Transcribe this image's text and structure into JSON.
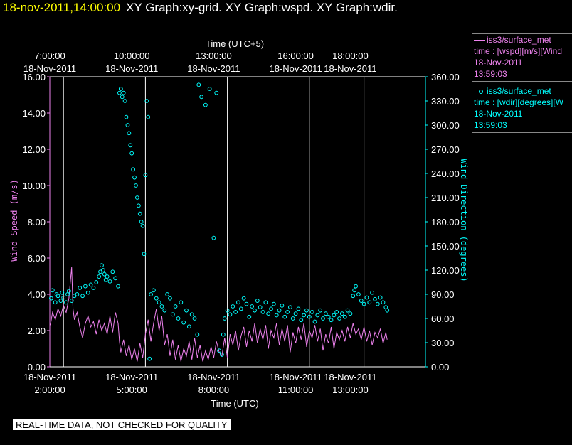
{
  "header": {
    "time": "18-nov-2011,14:00:00",
    "graphs": "XY Graph:xy-grid.  XY Graph:wspd.  XY Graph:wdir."
  },
  "footer": {
    "note": "REAL-TIME DATA, NOT CHECKED FOR QUALITY"
  },
  "legend": {
    "wspd": {
      "name": "iss3/surface_met",
      "desc": "time : [wspd][m/s][Wind",
      "date": "18-Nov-2011",
      "time": "13:59:03"
    },
    "wdir": {
      "name": "iss3/surface_met",
      "desc": "time : [wdir][degrees][W",
      "date": "18-Nov-2011",
      "time": "13:59:03"
    }
  },
  "colors": {
    "wspd": "#ee82ee",
    "wdir": "#00ffff",
    "grid": "#ffffff",
    "background": "#000000"
  },
  "chart_data": {
    "type": "scatter",
    "xlabel_bottom": "Time (UTC)",
    "xlabel_top": "Time (UTC+5)",
    "ylabel_left": "Wind Speed (m/s)",
    "ylabel_right": "Wind Direction (degrees)",
    "xlim": [
      1.5,
      15.25
    ],
    "ylim_left": [
      0,
      16
    ],
    "ylim_right": [
      0,
      360
    ],
    "grid_x": [
      2,
      5,
      8,
      11,
      13
    ],
    "bottom_ticks": [
      {
        "x": 1.5,
        "date": "18-Nov-2011",
        "time": "2:00:00"
      },
      {
        "x": 4.5,
        "date": "18-Nov-2011",
        "time": "5:00:00"
      },
      {
        "x": 7.5,
        "date": "18-Nov-2011",
        "time": "8:00:00"
      },
      {
        "x": 10.5,
        "date": "18-Nov-2011",
        "time": "11:00:00"
      },
      {
        "x": 12.5,
        "date": "18-Nov-2011",
        "time": "13:00:00"
      }
    ],
    "top_ticks": [
      {
        "x": 1.5,
        "date": "18-Nov-2011",
        "time": "7:00:00"
      },
      {
        "x": 4.5,
        "date": "18-Nov-2011",
        "time": "10:00:00"
      },
      {
        "x": 7.5,
        "date": "18-Nov-2011",
        "time": "13:00:00"
      },
      {
        "x": 10.5,
        "date": "18-Nov-2011",
        "time": "16:00:00"
      },
      {
        "x": 12.5,
        "date": "18-Nov-2011",
        "time": "18:00:00"
      }
    ],
    "left_ticks": [
      "0.00",
      "2.00",
      "4.00",
      "6.00",
      "8.00",
      "10.00",
      "12.00",
      "14.00",
      "16.00"
    ],
    "right_ticks": [
      "0.00",
      "30.00",
      "60.00",
      "90.00",
      "120.00",
      "150.00",
      "180.00",
      "210.00",
      "240.00",
      "270.00",
      "300.00",
      "330.00",
      "360.00"
    ],
    "series": [
      {
        "name": "wspd",
        "style": "line",
        "points": [
          [
            1.52,
            2.3
          ],
          [
            1.6,
            3.0
          ],
          [
            1.7,
            2.6
          ],
          [
            1.8,
            3.2
          ],
          [
            1.9,
            2.8
          ],
          [
            2.0,
            3.4
          ],
          [
            2.1,
            3.0
          ],
          [
            2.2,
            3.8
          ],
          [
            2.3,
            5.5
          ],
          [
            2.35,
            3.2
          ],
          [
            2.4,
            2.6
          ],
          [
            2.5,
            3.0
          ],
          [
            2.6,
            2.2
          ],
          [
            2.7,
            1.6
          ],
          [
            2.8,
            2.4
          ],
          [
            2.9,
            2.8
          ],
          [
            3.0,
            2.2
          ],
          [
            3.1,
            2.5
          ],
          [
            3.2,
            1.8
          ],
          [
            3.3,
            2.6
          ],
          [
            3.4,
            2.0
          ],
          [
            3.5,
            2.4
          ],
          [
            3.6,
            1.8
          ],
          [
            3.7,
            2.8
          ],
          [
            3.8,
            1.9
          ],
          [
            3.9,
            3.0
          ],
          [
            4.0,
            2.4
          ],
          [
            4.05,
            1.4
          ],
          [
            4.1,
            0.8
          ],
          [
            4.2,
            1.5
          ],
          [
            4.3,
            0.6
          ],
          [
            4.4,
            1.2
          ],
          [
            4.5,
            0.4
          ],
          [
            4.6,
            1.0
          ],
          [
            4.7,
            0.3
          ],
          [
            4.8,
            1.3
          ],
          [
            4.9,
            0.5
          ],
          [
            5.0,
            1.8
          ],
          [
            5.1,
            2.6
          ],
          [
            5.2,
            1.4
          ],
          [
            5.3,
            2.4
          ],
          [
            5.4,
            3.2
          ],
          [
            5.5,
            2.0
          ],
          [
            5.6,
            2.8
          ],
          [
            5.7,
            1.2
          ],
          [
            5.8,
            1.8
          ],
          [
            5.9,
            0.6
          ],
          [
            6.0,
            1.5
          ],
          [
            6.1,
            0.4
          ],
          [
            6.2,
            1.2
          ],
          [
            6.3,
            0.3
          ],
          [
            6.4,
            1.0
          ],
          [
            6.5,
            0.6
          ],
          [
            6.6,
            1.4
          ],
          [
            6.7,
            0.4
          ],
          [
            6.8,
            1.6
          ],
          [
            6.9,
            0.5
          ],
          [
            7.0,
            1.2
          ],
          [
            7.1,
            0.3
          ],
          [
            7.2,
            0.9
          ],
          [
            7.3,
            0.4
          ],
          [
            7.4,
            1.1
          ],
          [
            7.5,
            0.5
          ],
          [
            7.6,
            1.4
          ],
          [
            7.7,
            0.8
          ],
          [
            7.8,
            0.6
          ],
          [
            7.9,
            1.6
          ],
          [
            8.0,
            0.5
          ],
          [
            8.1,
            1.8
          ],
          [
            8.2,
            1.2
          ],
          [
            8.3,
            2.0
          ],
          [
            8.4,
            0.9
          ],
          [
            8.5,
            1.7
          ],
          [
            8.6,
            2.2
          ],
          [
            8.7,
            1.1
          ],
          [
            8.8,
            2.0
          ],
          [
            8.9,
            1.4
          ],
          [
            9.0,
            2.4
          ],
          [
            9.1,
            1.3
          ],
          [
            9.2,
            2.1
          ],
          [
            9.3,
            1.5
          ],
          [
            9.4,
            2.3
          ],
          [
            9.5,
            1.0
          ],
          [
            9.6,
            2.0
          ],
          [
            9.7,
            1.6
          ],
          [
            9.8,
            2.4
          ],
          [
            9.9,
            1.2
          ],
          [
            10.0,
            2.1
          ],
          [
            10.1,
            1.4
          ],
          [
            10.2,
            2.3
          ],
          [
            10.3,
            0.8
          ],
          [
            10.4,
            1.9
          ],
          [
            10.5,
            1.3
          ],
          [
            10.6,
            2.2
          ],
          [
            10.7,
            1.5
          ],
          [
            10.8,
            2.4
          ],
          [
            10.9,
            1.1
          ],
          [
            11.0,
            2.0
          ],
          [
            11.1,
            1.6
          ],
          [
            11.2,
            2.3
          ],
          [
            11.3,
            1.4
          ],
          [
            11.4,
            2.1
          ],
          [
            11.5,
            0.9
          ],
          [
            11.6,
            1.8
          ],
          [
            11.7,
            1.3
          ],
          [
            11.8,
            2.2
          ],
          [
            11.9,
            1.0
          ],
          [
            12.0,
            1.9
          ],
          [
            12.1,
            1.5
          ],
          [
            12.2,
            2.0
          ],
          [
            12.3,
            1.4
          ],
          [
            12.4,
            2.2
          ],
          [
            12.5,
            1.6
          ],
          [
            12.6,
            2.4
          ],
          [
            12.7,
            1.8
          ],
          [
            12.8,
            2.1
          ],
          [
            12.9,
            1.5
          ],
          [
            13.0,
            2.2
          ],
          [
            13.1,
            1.4
          ],
          [
            13.2,
            2.0
          ],
          [
            13.3,
            1.2
          ],
          [
            13.4,
            1.9
          ],
          [
            13.5,
            1.6
          ],
          [
            13.6,
            2.1
          ],
          [
            13.7,
            1.3
          ],
          [
            13.8,
            1.9
          ],
          [
            13.85,
            1.5
          ]
        ]
      },
      {
        "name": "wdir",
        "style": "circles",
        "points": [
          [
            1.55,
            85
          ],
          [
            1.6,
            95
          ],
          [
            1.7,
            80
          ],
          [
            1.75,
            90
          ],
          [
            1.8,
            88
          ],
          [
            1.9,
            82
          ],
          [
            1.95,
            92
          ],
          [
            2.0,
            86
          ],
          [
            2.1,
            80
          ],
          [
            2.15,
            90
          ],
          [
            2.2,
            94
          ],
          [
            2.3,
            82
          ],
          [
            2.4,
            88
          ],
          [
            2.5,
            90
          ],
          [
            2.6,
            98
          ],
          [
            2.7,
            88
          ],
          [
            2.8,
            100
          ],
          [
            2.9,
            92
          ],
          [
            3.0,
            102
          ],
          [
            3.1,
            98
          ],
          [
            3.2,
            105
          ],
          [
            3.3,
            112
          ],
          [
            3.35,
            118
          ],
          [
            3.4,
            126
          ],
          [
            3.45,
            120
          ],
          [
            3.5,
            115
          ],
          [
            3.55,
            108
          ],
          [
            3.6,
            112
          ],
          [
            3.7,
            106
          ],
          [
            3.8,
            118
          ],
          [
            3.9,
            110
          ],
          [
            4.0,
            100
          ],
          [
            4.05,
            340
          ],
          [
            4.1,
            345
          ],
          [
            4.15,
            335
          ],
          [
            4.2,
            340
          ],
          [
            4.25,
            330
          ],
          [
            4.3,
            310
          ],
          [
            4.35,
            300
          ],
          [
            4.4,
            290
          ],
          [
            4.45,
            275
          ],
          [
            4.5,
            265
          ],
          [
            4.55,
            245
          ],
          [
            4.6,
            235
          ],
          [
            4.65,
            225
          ],
          [
            4.7,
            210
          ],
          [
            4.75,
            200
          ],
          [
            4.8,
            190
          ],
          [
            4.85,
            180
          ],
          [
            4.9,
            175
          ],
          [
            4.95,
            140
          ],
          [
            5.0,
            238
          ],
          [
            5.05,
            330
          ],
          [
            5.1,
            310
          ],
          [
            5.15,
            10
          ],
          [
            5.2,
            90
          ],
          [
            5.3,
            95
          ],
          [
            5.4,
            85
          ],
          [
            5.5,
            80
          ],
          [
            5.6,
            75
          ],
          [
            5.7,
            70
          ],
          [
            5.8,
            90
          ],
          [
            5.9,
            85
          ],
          [
            6.0,
            65
          ],
          [
            6.1,
            75
          ],
          [
            6.2,
            60
          ],
          [
            6.3,
            80
          ],
          [
            6.4,
            55
          ],
          [
            6.5,
            70
          ],
          [
            6.6,
            50
          ],
          [
            6.7,
            65
          ],
          [
            6.8,
            60
          ],
          [
            6.9,
            40
          ],
          [
            6.95,
            350
          ],
          [
            7.05,
            335
          ],
          [
            7.2,
            325
          ],
          [
            7.35,
            345
          ],
          [
            7.5,
            160
          ],
          [
            7.6,
            340
          ],
          [
            7.7,
            20
          ],
          [
            7.8,
            15
          ],
          [
            7.85,
            40
          ],
          [
            7.9,
            60
          ],
          [
            8.0,
            70
          ],
          [
            8.1,
            65
          ],
          [
            8.2,
            75
          ],
          [
            8.3,
            68
          ],
          [
            8.4,
            80
          ],
          [
            8.5,
            72
          ],
          [
            8.6,
            85
          ],
          [
            8.7,
            78
          ],
          [
            8.8,
            62
          ],
          [
            8.9,
            75
          ],
          [
            9.0,
            70
          ],
          [
            9.1,
            82
          ],
          [
            9.2,
            74
          ],
          [
            9.3,
            68
          ],
          [
            9.4,
            80
          ],
          [
            9.5,
            66
          ],
          [
            9.6,
            72
          ],
          [
            9.7,
            78
          ],
          [
            9.8,
            64
          ],
          [
            9.9,
            70
          ],
          [
            10.0,
            76
          ],
          [
            10.1,
            62
          ],
          [
            10.2,
            68
          ],
          [
            10.3,
            74
          ],
          [
            10.4,
            60
          ],
          [
            10.5,
            66
          ],
          [
            10.6,
            72
          ],
          [
            10.7,
            58
          ],
          [
            10.8,
            64
          ],
          [
            10.9,
            70
          ],
          [
            11.0,
            62
          ],
          [
            11.1,
            68
          ],
          [
            11.2,
            56
          ],
          [
            11.3,
            64
          ],
          [
            11.4,
            70
          ],
          [
            11.5,
            60
          ],
          [
            11.6,
            66
          ],
          [
            11.7,
            62
          ],
          [
            11.8,
            58
          ],
          [
            11.9,
            64
          ],
          [
            12.0,
            68
          ],
          [
            12.1,
            60
          ],
          [
            12.2,
            66
          ],
          [
            12.3,
            62
          ],
          [
            12.4,
            70
          ],
          [
            12.5,
            66
          ],
          [
            12.6,
            88
          ],
          [
            12.65,
            95
          ],
          [
            12.7,
            100
          ],
          [
            12.8,
            90
          ],
          [
            12.9,
            82
          ],
          [
            13.0,
            78
          ],
          [
            13.1,
            86
          ],
          [
            13.2,
            80
          ],
          [
            13.3,
            92
          ],
          [
            13.4,
            84
          ],
          [
            13.5,
            78
          ],
          [
            13.6,
            86
          ],
          [
            13.7,
            80
          ],
          [
            13.8,
            74
          ],
          [
            13.85,
            70
          ]
        ]
      }
    ]
  }
}
